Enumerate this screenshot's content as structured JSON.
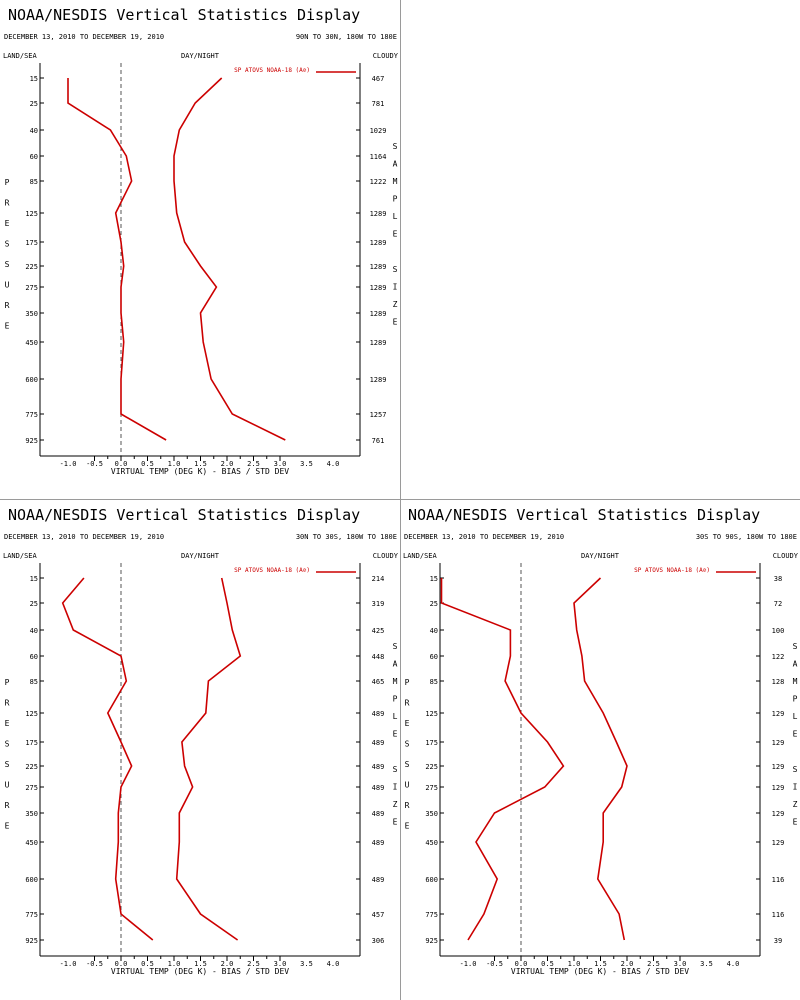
{
  "page": {
    "header": "NOAA/NESDIS Vertical Statistics Display",
    "date_range": "DECEMBER 13, 2010 TO DECEMBER 19, 2010",
    "land_sea": "LAND/SEA",
    "day_night": "DAY/NIGHT",
    "cloudy": "CLOUDY",
    "left_axis_title": "PRESSURE",
    "right_axis_title": "SAMPLE SIZE",
    "x_label": "VIRTUAL TEMP (DEG K) - BIAS / STD DEV",
    "legend": "SP ATOVS NOAA-18 (A⊘)",
    "series_color": "#cc0000"
  },
  "chart_data": [
    {
      "type": "line",
      "region": "90N TO 30N, 180W TO 180E",
      "pressure_levels": [
        "15",
        "25",
        "40",
        "60",
        "85",
        "125",
        "175",
        "225",
        "275",
        "350",
        "450",
        "600",
        "775",
        "925"
      ],
      "sample_size": [
        "467",
        "781",
        "1029",
        "1164",
        "1222",
        "1289",
        "1289",
        "1289",
        "1289",
        "1289",
        "1289",
        "1289",
        "1257",
        "761"
      ],
      "xlim": [
        -1.5,
        4.5
      ],
      "x_ticks": [
        "-1.0",
        "-0.5",
        "0.0",
        "0.5",
        "1.0",
        "1.5",
        "2.0",
        "2.5",
        "3.0",
        "3.5",
        "4.0"
      ],
      "series": [
        {
          "values": [
            -1.0,
            -1.0,
            -0.2,
            0.1,
            0.2,
            -0.1,
            0.0,
            0.05,
            0.0,
            0.0,
            0.05,
            0.0,
            0.0,
            0.85
          ]
        },
        {
          "values": [
            1.9,
            1.4,
            1.1,
            1.0,
            1.0,
            1.05,
            1.2,
            1.5,
            1.8,
            1.5,
            1.55,
            1.7,
            2.1,
            3.1
          ]
        }
      ]
    },
    {
      "type": "line",
      "region": "30N TO 30S, 180W TO 180E",
      "pressure_levels": [
        "15",
        "25",
        "40",
        "60",
        "85",
        "125",
        "175",
        "225",
        "275",
        "350",
        "450",
        "600",
        "775",
        "925"
      ],
      "sample_size": [
        "214",
        "319",
        "425",
        "448",
        "465",
        "489",
        "489",
        "489",
        "489",
        "489",
        "489",
        "489",
        "457",
        "306"
      ],
      "xlim": [
        -1.5,
        4.5
      ],
      "x_ticks": [
        "-1.0",
        "-0.5",
        "0.0",
        "0.5",
        "1.0",
        "1.5",
        "2.0",
        "2.5",
        "3.0",
        "3.5",
        "4.0"
      ],
      "series": [
        {
          "values": [
            -0.7,
            -1.1,
            -0.9,
            0.0,
            0.1,
            -0.25,
            0.0,
            0.2,
            0.0,
            -0.05,
            -0.05,
            -0.1,
            0.0,
            0.6
          ]
        },
        {
          "values": [
            1.9,
            2.0,
            2.1,
            2.25,
            1.65,
            1.6,
            1.15,
            1.2,
            1.35,
            1.1,
            1.1,
            1.05,
            1.5,
            2.2
          ]
        }
      ]
    },
    {
      "type": "line",
      "region": "30S TO 90S, 180W TO 180E",
      "pressure_levels": [
        "15",
        "25",
        "40",
        "60",
        "85",
        "125",
        "175",
        "225",
        "275",
        "350",
        "450",
        "600",
        "775",
        "925"
      ],
      "sample_size": [
        "38",
        "72",
        "100",
        "122",
        "128",
        "129",
        "129",
        "129",
        "129",
        "129",
        "129",
        "116",
        "116",
        "39"
      ],
      "xlim": [
        -1.5,
        4.5
      ],
      "x_ticks": [
        "-1.0",
        "-0.5",
        "0.0",
        "0.5",
        "1.0",
        "1.5",
        "2.0",
        "2.5",
        "3.0",
        "3.5",
        "4.0"
      ],
      "series": [
        {
          "values": [
            -1.5,
            -1.5,
            -0.2,
            -0.2,
            -0.3,
            0.0,
            0.5,
            0.8,
            0.45,
            -0.5,
            -0.85,
            -0.45,
            -0.7,
            -1.0
          ]
        },
        {
          "values": [
            1.5,
            1.0,
            1.05,
            1.15,
            1.2,
            1.55,
            1.8,
            2.0,
            1.9,
            1.55,
            1.55,
            1.45,
            1.85,
            1.95
          ]
        }
      ]
    }
  ]
}
